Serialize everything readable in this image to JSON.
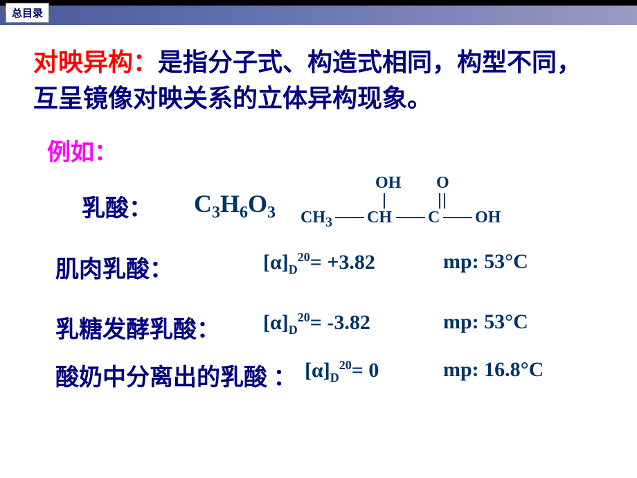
{
  "tab_label": "总目录",
  "definition": {
    "term": "对映异构：",
    "text": "是指分子式、构造式相同，构型不同，互呈镜像对映关系的立体异构现象。"
  },
  "example_label": "例如：",
  "lactic": {
    "name": "乳酸：",
    "formula_parts": {
      "c": "C",
      "c_n": "3",
      "h": "H",
      "h_n": "6",
      "o": "O",
      "o_n": "3"
    },
    "struct": {
      "ch3": "CH",
      "ch3_sub": "3",
      "chc": "CHC",
      "oh_top": "OH",
      "o_top": "O",
      "oh_right": "OH"
    }
  },
  "rows": [
    {
      "label": "肌肉乳酸：",
      "rotation": "[α]<sub>D</sub><sup>20</sup>= +3.82",
      "mp": "mp: 53°C"
    },
    {
      "label": "乳糖发酵乳酸：",
      "rotation": "[α]<sub>D</sub><sup>20</sup>= -3.82",
      "mp": "mp: 53°C"
    },
    {
      "label": "酸奶中分离出的乳酸 ：",
      "rotation": "[α]<sub>D</sub><sup>20</sup>= 0",
      "mp": "mp: 16.8°C"
    }
  ],
  "colors": {
    "bar_start": "#4a5a9a",
    "bar_end": "#9a9ac5",
    "red": "#ff0000",
    "blue": "#000080",
    "darkblue": "#003366",
    "magenta": "#ff00ff"
  }
}
